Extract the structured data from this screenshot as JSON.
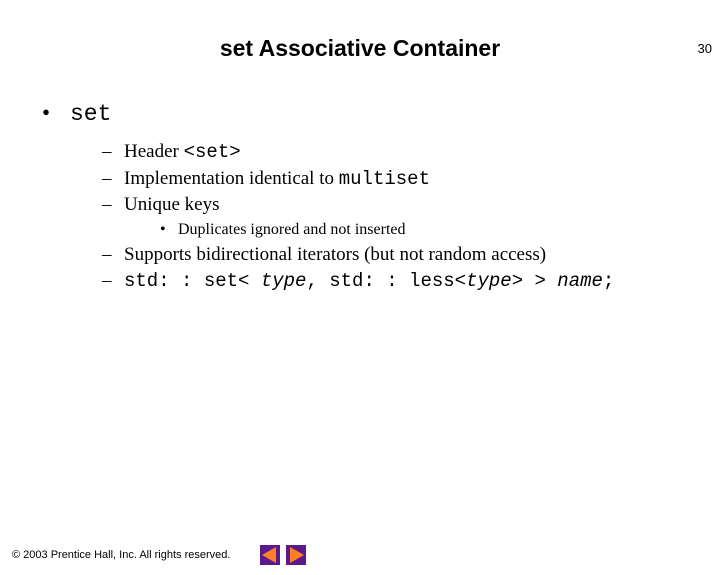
{
  "page_number": "30",
  "title": "set Associative Container",
  "main_bullet": "set",
  "sub_items": [
    {
      "prefix": "Header ",
      "code": "<set>",
      "suffix": ""
    },
    {
      "prefix": "Implementation identical to ",
      "code": "multiset",
      "suffix": ""
    },
    {
      "prefix": "Unique keys",
      "code": "",
      "suffix": ""
    }
  ],
  "sub_sub_item": "Duplicates ignored and not inserted",
  "sub_items2": [
    {
      "prefix": "Supports bidirectional iterators (but not random access)",
      "code": "",
      "suffix": ""
    },
    {
      "prefix": "",
      "code": "std: : set< ",
      "italic_code": "type",
      "code2": ", std: : less<",
      "italic_code2": "type",
      "code3": "> > ",
      "italic_code3": "name",
      "code4": ";",
      "is_code_line": true
    }
  ],
  "footer": "© 2003 Prentice Hall, Inc. All rights reserved.",
  "colors": {
    "nav_bg": "#5b1a8b",
    "nav_arrow": "#ff7f27"
  }
}
